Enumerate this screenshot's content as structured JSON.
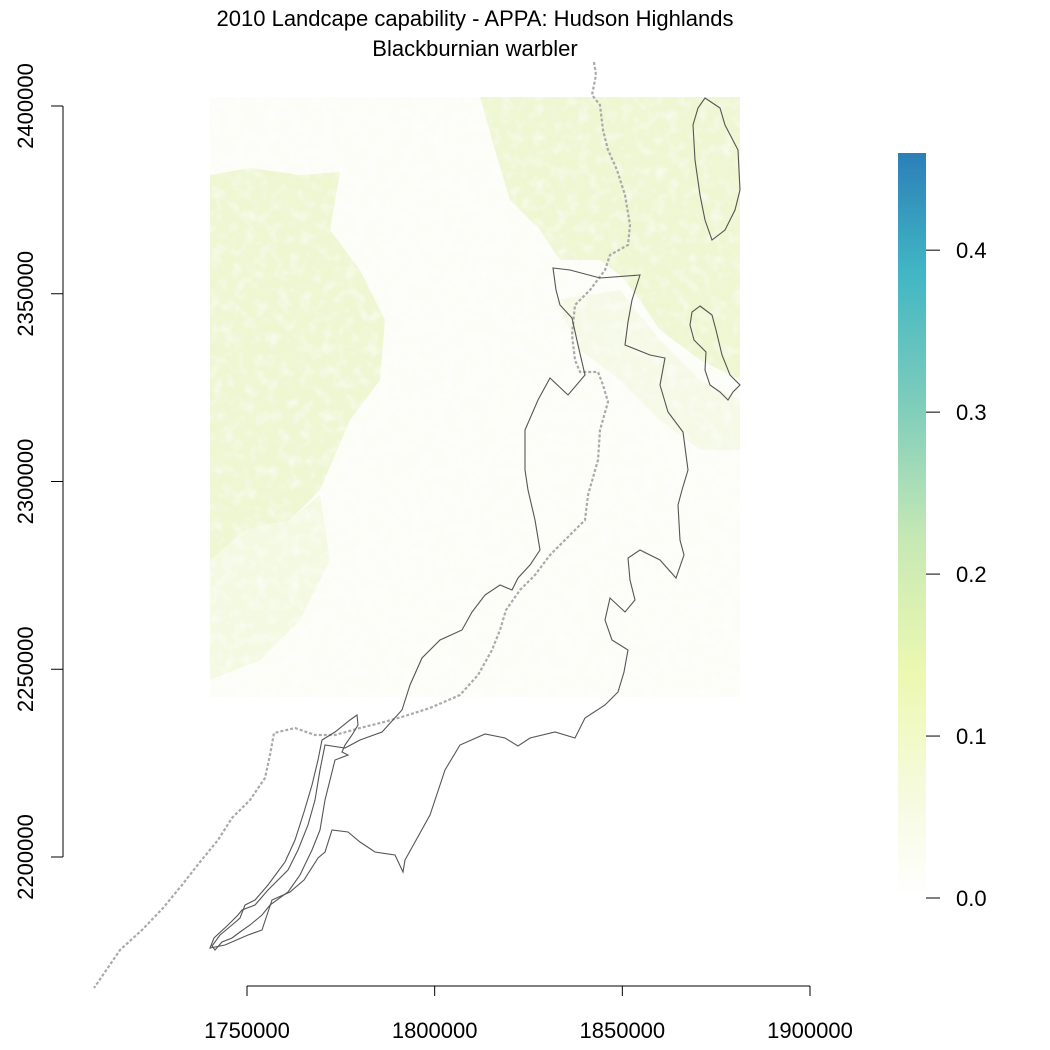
{
  "title": {
    "line1": "2010 Landcape capability - APPA: Hudson Highlands",
    "line2": "Blackburnian warbler"
  },
  "chart_data": {
    "type": "heatmap",
    "title": "2010 Landcape capability - APPA: Hudson Highlands",
    "subtitle": "Blackburnian warbler",
    "xlabel": "",
    "ylabel": "",
    "x_ticks": [
      "1750000",
      "1800000",
      "1850000",
      "1900000"
    ],
    "x_tick_values": [
      1750000,
      1800000,
      1850000,
      1900000
    ],
    "y_ticks": [
      "2200000",
      "2250000",
      "2300000",
      "2350000",
      "2400000"
    ],
    "y_tick_values": [
      2200000,
      2250000,
      2300000,
      2350000,
      2400000
    ],
    "xlim": [
      1750000,
      1900000
    ],
    "ylim": [
      2200000,
      2400000
    ],
    "colorbar": {
      "min": 0.0,
      "max": 0.46,
      "ticks": [
        "0.0",
        "0.1",
        "0.2",
        "0.3",
        "0.4"
      ],
      "tick_values": [
        0.0,
        0.1,
        0.2,
        0.3,
        0.4
      ],
      "colors": [
        "#ffffff",
        "#f7fbe3",
        "#edf8b1",
        "#c7e9b4",
        "#7fcdbb",
        "#41b6c4",
        "#2c7fb8"
      ]
    },
    "raster_colors": {
      "high": "#eef6d0",
      "low": "#fafcf2"
    },
    "boundary_color": "#555555",
    "trail_color": "#aaaaaa"
  }
}
